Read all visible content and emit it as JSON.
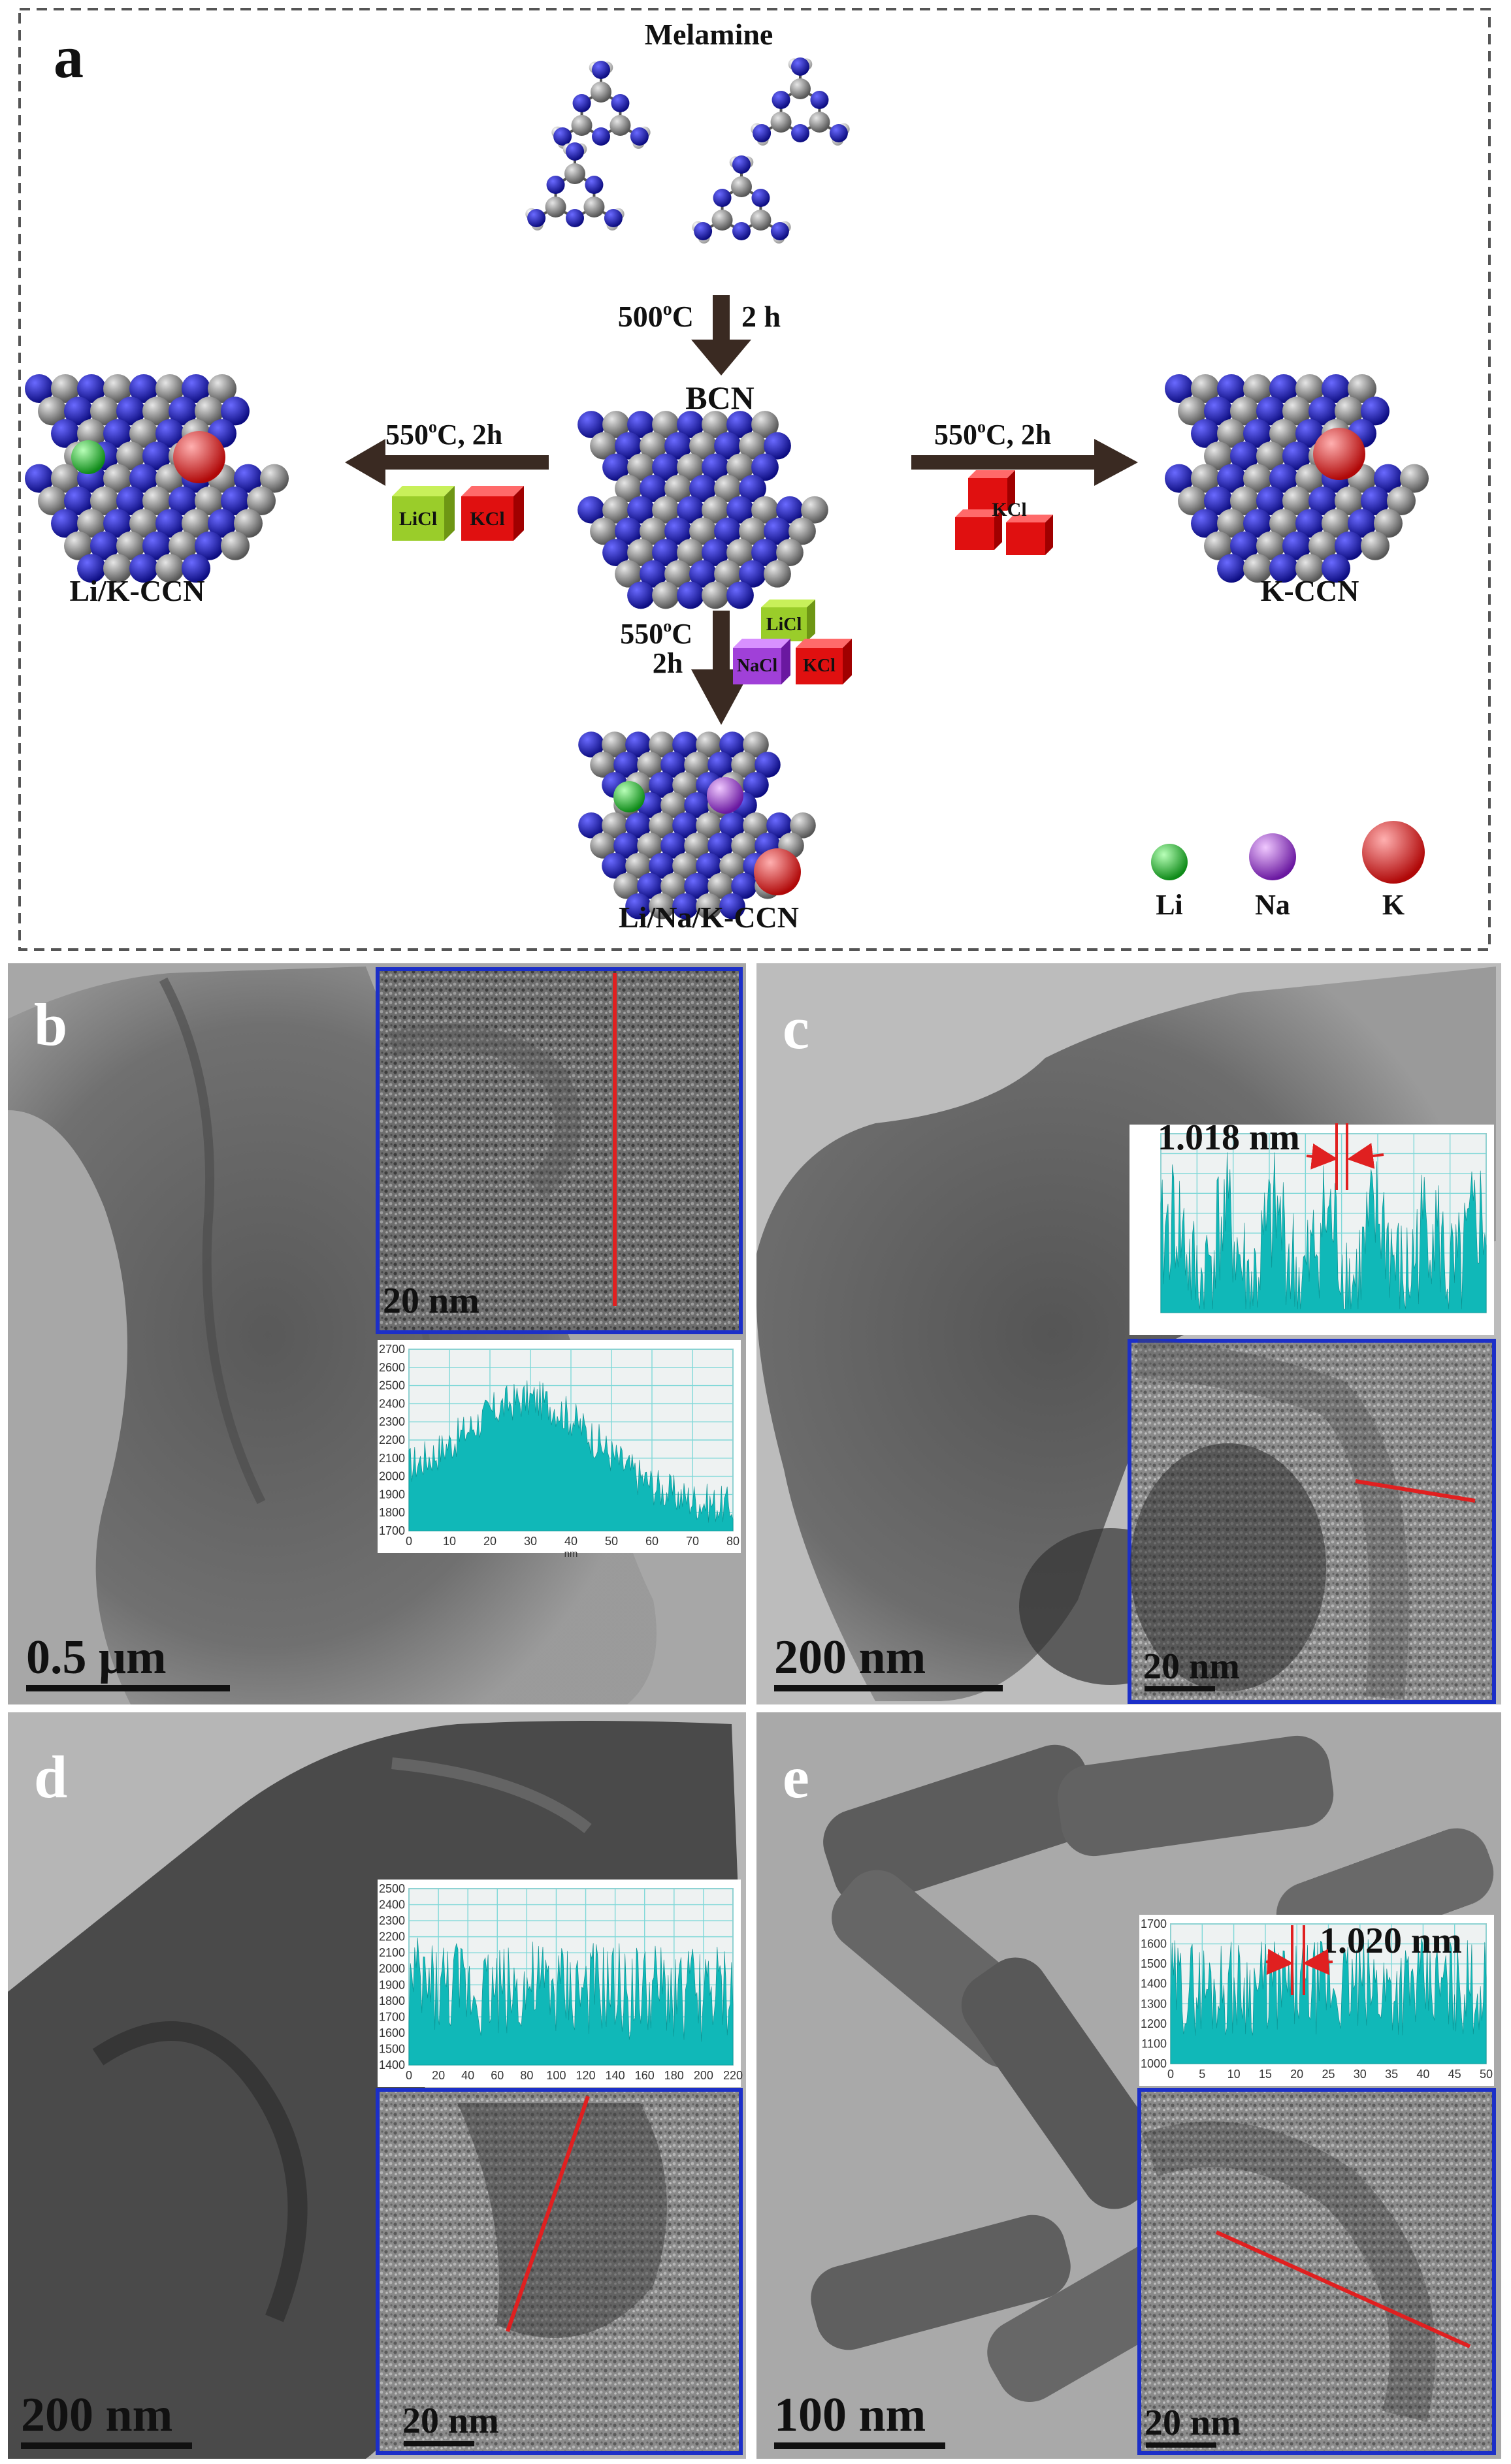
{
  "panel_a": {
    "label": "a",
    "melamine_label": "Melamine",
    "step1_temp": "500",
    "step1_temp_unit": "oC",
    "step1_time": "2 h",
    "bcn_label": "BCN",
    "left_condition": "550oC, 2h",
    "right_condition": "550oC, 2h",
    "down_temp": "550oC",
    "down_time": "2h",
    "salts": {
      "licl": "LiCl",
      "kcl": "KCl",
      "nacl": "NaCl"
    },
    "products": {
      "left": "Li/K-CCN",
      "right": "K-CCN",
      "bottom": "Li/Na/K-CCN"
    },
    "legend": [
      {
        "symbol": "Li",
        "color": "#22c02a"
      },
      {
        "symbol": "Na",
        "color": "#a040d8"
      },
      {
        "symbol": "K",
        "color": "#e02020"
      }
    ],
    "atom_colors": {
      "carbon": "#8c8c8c",
      "nitrogen": "#1a1aa8",
      "hydrogen": "#e8e8e8"
    }
  },
  "panel_b": {
    "label": "b",
    "scale_bar": "0.5 μm",
    "inset_scale": "20 nm",
    "profile": {
      "y_ticks": [
        "2700",
        "2600",
        "2500",
        "2400",
        "2300",
        "2200",
        "2100",
        "2000",
        "1900",
        "1800",
        "1700"
      ],
      "x_ticks": [
        "0",
        "10",
        "20",
        "30",
        "40",
        "50",
        "60",
        "70",
        "80"
      ],
      "x_unit": "nm"
    }
  },
  "panel_c": {
    "label": "c",
    "scale_bar": "200 nm",
    "inset_scale": "20 nm",
    "spacing": "1.018 nm"
  },
  "panel_d": {
    "label": "d",
    "scale_bar": "200 nm",
    "inset_scale": "20 nm",
    "profile": {
      "y_ticks": [
        "2500",
        "2400",
        "2300",
        "2200",
        "2100",
        "2000",
        "1900",
        "1800",
        "1700",
        "1600",
        "1500",
        "1400"
      ],
      "x_ticks": [
        "0",
        "20",
        "40",
        "60",
        "80",
        "100",
        "120",
        "140",
        "160",
        "180",
        "200",
        "220"
      ]
    }
  },
  "panel_e": {
    "label": "e",
    "scale_bar": "100 nm",
    "inset_scale": "20 nm",
    "spacing": "1.020 nm",
    "profile": {
      "y_ticks": [
        "1700",
        "1600",
        "1500",
        "1400",
        "1300",
        "1200",
        "1100",
        "1000"
      ],
      "x_ticks": [
        "0",
        "5",
        "10",
        "15",
        "20",
        "25",
        "30",
        "35",
        "40",
        "45",
        "50"
      ]
    }
  },
  "colors": {
    "profile_fill": "#10b8b8",
    "inset_border": "#1c2fc8",
    "line_marker": "#e02020",
    "arrow": "#3a2a22"
  }
}
